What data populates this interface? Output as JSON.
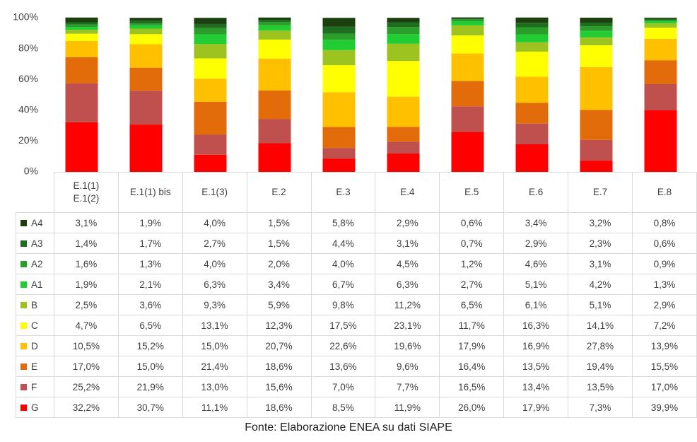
{
  "chart_data": {
    "type": "stacked_bar",
    "categories": [
      "E.1(1)\nE.1(2)",
      "E.1(1) bis",
      "E.1(3)",
      "E.2",
      "E.3",
      "E.4",
      "E.5",
      "E.6",
      "E.7",
      "E.8"
    ],
    "ylim": [
      0,
      100
    ],
    "yticks": [
      {
        "value": 0,
        "label": "0%"
      },
      {
        "value": 20,
        "label": "20%"
      },
      {
        "value": 40,
        "label": "40%"
      },
      {
        "value": 60,
        "label": "60%"
      },
      {
        "value": 80,
        "label": "80%"
      },
      {
        "value": 100,
        "label": "100%"
      }
    ],
    "grid": false,
    "series": [
      {
        "name": "A4",
        "color": "#1c3f0e",
        "values": [
          3.1,
          1.9,
          4.0,
          1.5,
          5.8,
          2.9,
          0.6,
          3.4,
          3.2,
          0.8
        ],
        "value_labels": [
          "3,1%",
          "1,9%",
          "4,0%",
          "1,5%",
          "5,8%",
          "2,9%",
          "0,6%",
          "3,4%",
          "3,2%",
          "0,8%"
        ]
      },
      {
        "name": "A3",
        "color": "#1f6e1f",
        "values": [
          1.4,
          1.7,
          2.7,
          1.5,
          4.4,
          3.1,
          0.7,
          2.9,
          2.3,
          0.6
        ],
        "value_labels": [
          "1,4%",
          "1,7%",
          "2,7%",
          "1,5%",
          "4,4%",
          "3,1%",
          "0,7%",
          "2,9%",
          "2,3%",
          "0,6%"
        ]
      },
      {
        "name": "A2",
        "color": "#2a9d2a",
        "values": [
          1.6,
          1.3,
          4.0,
          2.0,
          4.0,
          4.5,
          1.2,
          4.6,
          3.1,
          0.9
        ],
        "value_labels": [
          "1,6%",
          "1,3%",
          "4,0%",
          "2,0%",
          "4,0%",
          "4,5%",
          "1,2%",
          "4,6%",
          "3,1%",
          "0,9%"
        ]
      },
      {
        "name": "A1",
        "color": "#22cc33",
        "values": [
          1.9,
          2.1,
          6.3,
          3.4,
          6.7,
          6.3,
          2.7,
          5.1,
          4.2,
          1.3
        ],
        "value_labels": [
          "1,9%",
          "2,1%",
          "6,3%",
          "3,4%",
          "6,7%",
          "6,3%",
          "2,7%",
          "5,1%",
          "4,2%",
          "1,3%"
        ]
      },
      {
        "name": "B",
        "color": "#9cc31f",
        "values": [
          2.5,
          3.6,
          9.3,
          5.9,
          9.8,
          11.2,
          6.5,
          6.1,
          5.1,
          2.9
        ],
        "value_labels": [
          "2,5%",
          "3,6%",
          "9,3%",
          "5,9%",
          "9,8%",
          "11,2%",
          "6,5%",
          "6,1%",
          "5,1%",
          "2,9%"
        ]
      },
      {
        "name": "C",
        "color": "#ffff00",
        "values": [
          4.7,
          6.5,
          13.1,
          12.3,
          17.5,
          23.1,
          11.7,
          16.3,
          14.1,
          7.2
        ],
        "value_labels": [
          "4,7%",
          "6,5%",
          "13,1%",
          "12,3%",
          "17,5%",
          "23,1%",
          "11,7%",
          "16,3%",
          "14,1%",
          "7,2%"
        ]
      },
      {
        "name": "D",
        "color": "#ffc000",
        "values": [
          10.5,
          15.2,
          15.0,
          20.7,
          22.6,
          19.6,
          17.9,
          16.9,
          27.8,
          13.9
        ],
        "value_labels": [
          "10,5%",
          "15,2%",
          "15,0%",
          "20,7%",
          "22,6%",
          "19,6%",
          "17,9%",
          "16,9%",
          "27,8%",
          "13,9%"
        ]
      },
      {
        "name": "E",
        "color": "#e26b0a",
        "values": [
          17.0,
          15.0,
          21.4,
          18.6,
          13.6,
          9.6,
          16.4,
          13.5,
          19.4,
          15.5
        ],
        "value_labels": [
          "17,0%",
          "15,0%",
          "21,4%",
          "18,6%",
          "13,6%",
          "9,6%",
          "16,4%",
          "13,5%",
          "19,4%",
          "15,5%"
        ]
      },
      {
        "name": "F",
        "color": "#c0504d",
        "values": [
          25.2,
          21.9,
          13.0,
          15.6,
          7.0,
          7.7,
          16.5,
          13.4,
          13.5,
          17.0
        ],
        "value_labels": [
          "25,2%",
          "21,9%",
          "13,0%",
          "15,6%",
          "7,0%",
          "7,7%",
          "16,5%",
          "13,4%",
          "13,5%",
          "17,0%"
        ]
      },
      {
        "name": "G",
        "color": "#ff0000",
        "values": [
          32.2,
          30.7,
          11.1,
          18.6,
          8.5,
          11.9,
          26.0,
          17.9,
          7.3,
          39.9
        ],
        "value_labels": [
          "32,2%",
          "30,7%",
          "11,1%",
          "18,6%",
          "8,5%",
          "11,9%",
          "26,0%",
          "17,9%",
          "7,3%",
          "39,9%"
        ]
      }
    ],
    "source": "Fonte: Elaborazione ENEA su dati SIAPE"
  }
}
